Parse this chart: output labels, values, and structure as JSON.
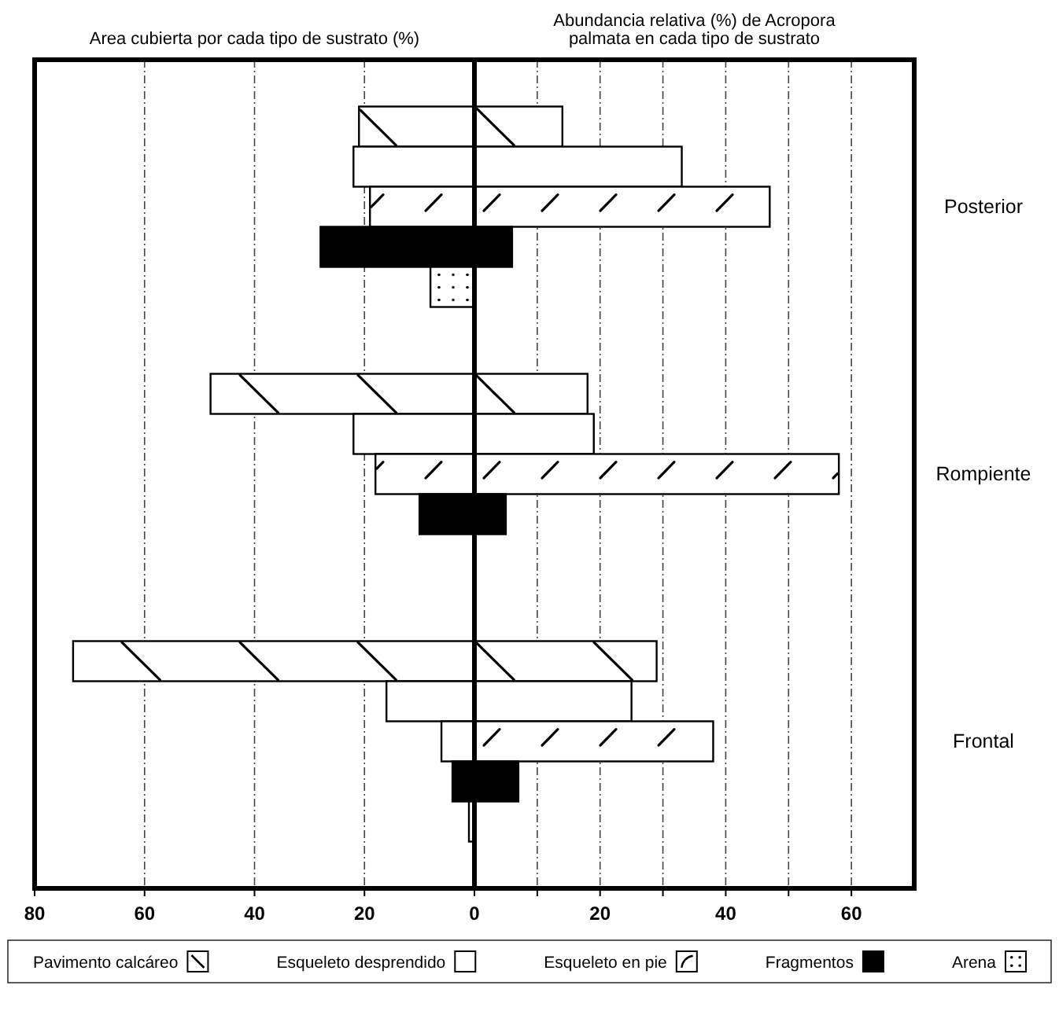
{
  "chart_data": [
    {
      "type": "bar",
      "orientation": "horizontal",
      "title": "Area cubierta por cada tipo de sustrato (%)",
      "categories": [
        null,
        null,
        null
      ],
      "xlim": [
        80,
        0
      ],
      "xticks": [
        80,
        60,
        40,
        20,
        0
      ],
      "grid": "x",
      "legend": "bottom",
      "series": [
        {
          "name": "Pavimento calcáreo",
          "color": "#ffffff",
          "values": [
            21,
            48,
            73
          ]
        },
        {
          "name": "Esqueleto desprendido",
          "color": "#ffffff",
          "values": [
            22,
            22,
            16
          ]
        },
        {
          "name": "Esqueleto en pie",
          "color": "#ffffff",
          "values": [
            19,
            18,
            6
          ]
        },
        {
          "name": "Fragmentos",
          "color": "#000000",
          "values": [
            28,
            10,
            4
          ]
        },
        {
          "name": "Arena",
          "color": "#ffffff",
          "values": [
            8,
            0,
            1
          ]
        }
      ]
    },
    {
      "type": "bar",
      "orientation": "horizontal",
      "title": "Abundancia relativa (%) de Acropora\npalmata en cada tipo de sustrato",
      "categories": [
        "Posterior",
        "Rompiente",
        "Frontal"
      ],
      "xlim": [
        0,
        70
      ],
      "xticks": [
        {
          "value": 10,
          "label": null
        },
        20,
        {
          "value": 30,
          "label": null
        },
        40,
        {
          "value": 50,
          "label": null
        },
        60
      ],
      "grid": "x",
      "series": [
        {
          "color": "#ffffff",
          "values": [
            14,
            18,
            29
          ]
        },
        {
          "color": "#ffffff",
          "values": [
            33,
            19,
            25
          ]
        },
        {
          "color": "#ffffff",
          "values": [
            47,
            58,
            38
          ]
        },
        {
          "color": "#000000",
          "values": [
            6,
            5,
            7
          ]
        },
        {
          "color": "#ffffff",
          "values": [
            0,
            0,
            0
          ]
        }
      ]
    }
  ]
}
